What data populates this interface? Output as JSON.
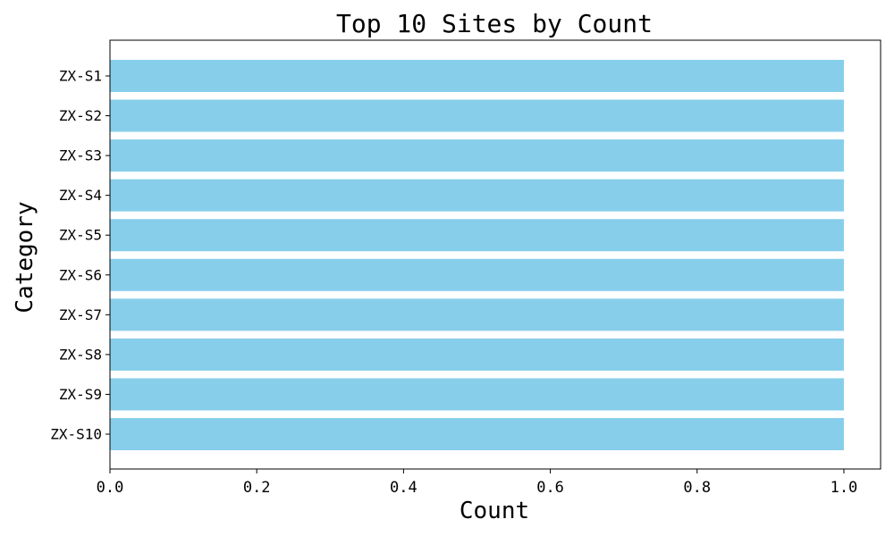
{
  "chart_data": {
    "type": "bar",
    "orientation": "horizontal",
    "title": "Top 10 Sites by Count",
    "xlabel": "Count",
    "ylabel": "Category",
    "categories": [
      "ZX-S1",
      "ZX-S2",
      "ZX-S3",
      "ZX-S4",
      "ZX-S5",
      "ZX-S6",
      "ZX-S7",
      "ZX-S8",
      "ZX-S9",
      "ZX-S10"
    ],
    "values": [
      1,
      1,
      1,
      1,
      1,
      1,
      1,
      1,
      1,
      1
    ],
    "xlim": [
      0,
      1.05
    ],
    "xticks": [
      0.0,
      0.2,
      0.4,
      0.6,
      0.8,
      1.0
    ],
    "xtick_labels": [
      "0.0",
      "0.2",
      "0.4",
      "0.6",
      "0.8",
      "1.0"
    ],
    "bar_color": "#87ceeb",
    "grid": false,
    "legend": "none"
  }
}
